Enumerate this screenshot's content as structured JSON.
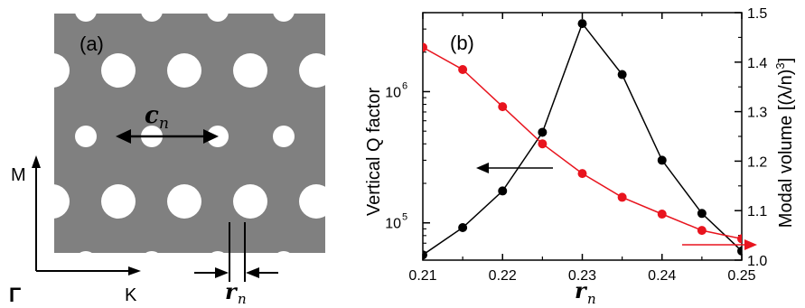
{
  "panel_a": {
    "label": "(a)",
    "dir_m": "M",
    "dir_k": "K",
    "dir_gamma": "Γ",
    "c_label": "c",
    "c_sub": "n",
    "r_label": "r",
    "r_sub": "n"
  },
  "chart_data": {
    "type": "line",
    "panel_label": "(b)",
    "xlabel": "r",
    "xlabel_sub": "n",
    "ylabel_left": "Vertical Q factor",
    "ylabel_right": "Modal volume [(λ/n)",
    "ylabel_right_sup": "3",
    "ylabel_right_close": "]",
    "x_ticks": [
      "0.21",
      "0.22",
      "0.23",
      "0.24",
      "0.25"
    ],
    "xlim": [
      0.21,
      0.25
    ],
    "y_left_scale": "log",
    "y_left_ticks": [
      {
        "value": 100000,
        "base": "10",
        "exp": "5"
      },
      {
        "value": 1000000,
        "base": "10",
        "exp": "6"
      }
    ],
    "y_left_lim": [
      52000,
      4000000
    ],
    "y_right_ticks": [
      "1.0",
      "1.1",
      "1.2",
      "1.3",
      "1.4",
      "1.5"
    ],
    "y_right_lim": [
      1.0,
      1.5
    ],
    "grid": false,
    "series": [
      {
        "axis": "left",
        "color": "#000000",
        "x": [
          0.21,
          0.215,
          0.22,
          0.225,
          0.23,
          0.235,
          0.24,
          0.245,
          0.25
        ],
        "values": [
          57000,
          92000,
          175000,
          490000,
          3300000,
          1350000,
          300000,
          118000,
          61000
        ]
      },
      {
        "axis": "right",
        "color": "#e8141e",
        "x": [
          0.21,
          0.215,
          0.22,
          0.225,
          0.23,
          0.235,
          0.24,
          0.245,
          0.25
        ],
        "values": [
          1.43,
          1.385,
          1.31,
          1.235,
          1.175,
          1.127,
          1.093,
          1.06,
          1.043
        ]
      }
    ]
  }
}
